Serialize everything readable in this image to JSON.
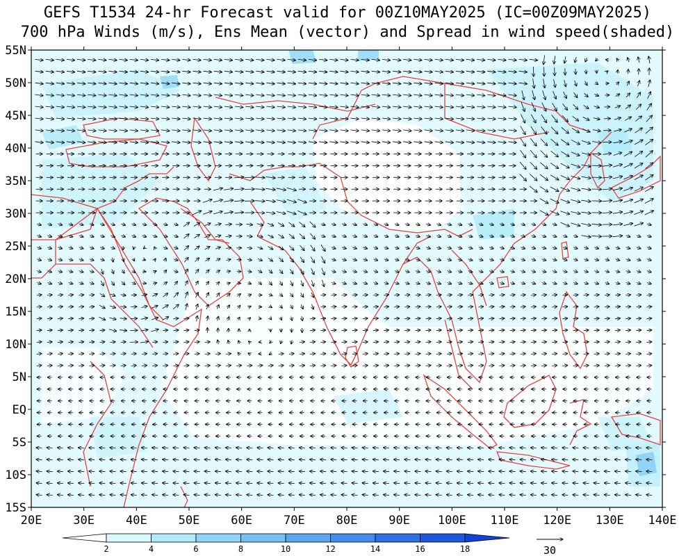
{
  "title_line1": "GEFS T1534 24-hr Forecast valid for 00Z10MAY2025 (IC=00Z09MAY2025)",
  "title_line2": "700 hPa Winds (m/s), Ens Mean (vector) and Spread in wind speed(shaded)",
  "map": {
    "lon_range": [
      20,
      140
    ],
    "lat_range": [
      -15,
      55
    ],
    "lon_labels": [
      "20E",
      "30E",
      "40E",
      "50E",
      "60E",
      "70E",
      "80E",
      "90E",
      "100E",
      "110E",
      "120E",
      "130E",
      "140E"
    ],
    "lat_labels": [
      "55N",
      "50N",
      "45N",
      "40N",
      "35N",
      "30N",
      "25N",
      "20N",
      "15N",
      "10N",
      "5N",
      "EQ",
      "5S",
      "10S",
      "15S"
    ],
    "coastline_color": "#e8413a",
    "vector_color": "#000000"
  },
  "colorbar": {
    "levels": [
      "2",
      "4",
      "6",
      "8",
      "10",
      "12",
      "14",
      "16",
      "18"
    ],
    "colors": [
      "#ffffff",
      "#d6f8ff",
      "#aeeaf9",
      "#8fd6f6",
      "#74c1f2",
      "#5aa6ef",
      "#448cea",
      "#2f70e4",
      "#1d57dd",
      "#1242d6"
    ]
  },
  "reference_vector": {
    "label": "30"
  }
}
